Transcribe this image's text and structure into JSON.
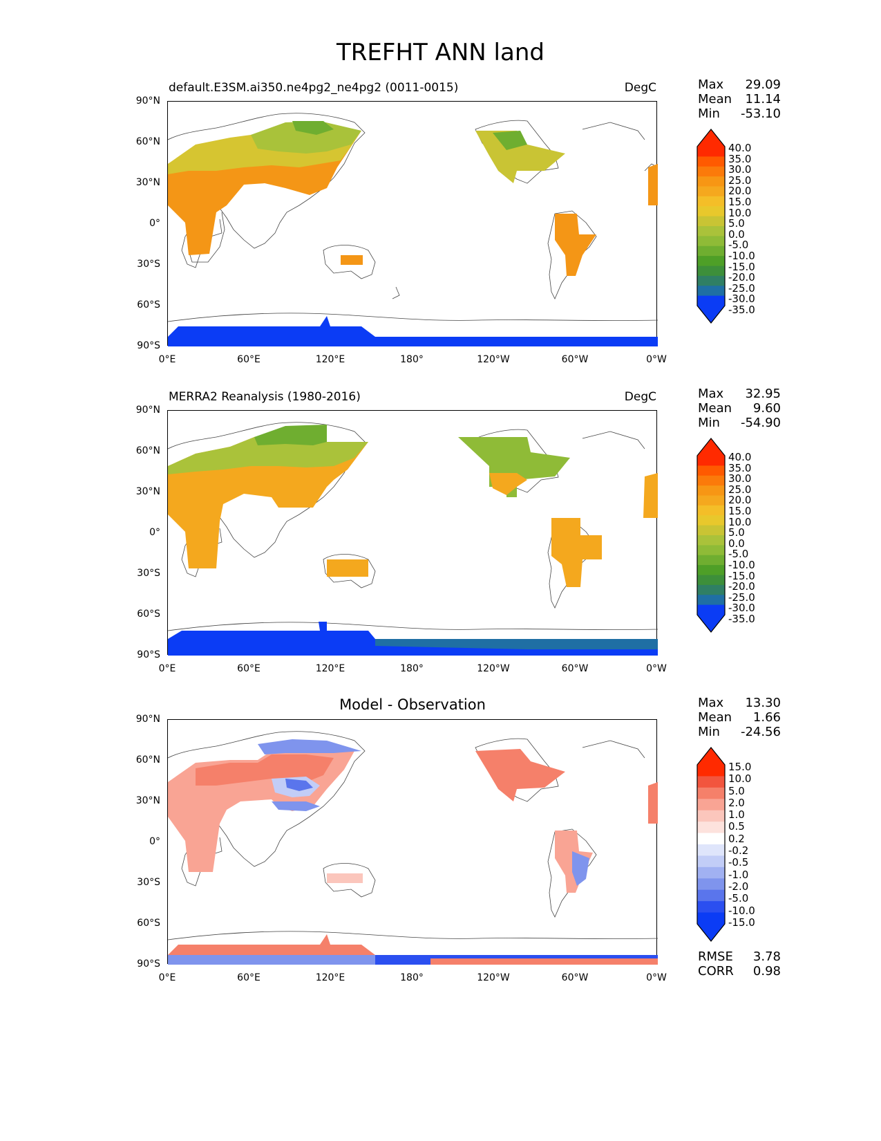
{
  "figure_title": "TREFHT ANN land",
  "x_ticks": [
    "0°E",
    "60°E",
    "120°E",
    "180°",
    "120°W",
    "60°W",
    "0°W"
  ],
  "y_ticks": [
    "90°N",
    "60°N",
    "30°N",
    "0°",
    "30°S",
    "60°S",
    "90°S"
  ],
  "panels": [
    {
      "title": "default.E3SM.ai350.ne4pg2_ne4pg2 (0011-0015)",
      "units": "DegC",
      "stats": [
        {
          "label": "Max",
          "value": "29.09"
        },
        {
          "label": "Mean",
          "value": "11.14"
        },
        {
          "label": "Min",
          "value": "-53.10"
        }
      ],
      "colorbar_levels": [
        "40.0",
        "35.0",
        "30.0",
        "25.0",
        "20.0",
        "15.0",
        "10.0",
        "5.0",
        "0.0",
        "-5.0",
        "-10.0",
        "-15.0",
        "-20.0",
        "-25.0",
        "-30.0",
        "-35.0"
      ]
    },
    {
      "title": "MERRA2 Reanalysis (1980-2016)",
      "units": "DegC",
      "stats": [
        {
          "label": "Max",
          "value": "32.95"
        },
        {
          "label": "Mean",
          "value": "9.60"
        },
        {
          "label": "Min",
          "value": "-54.90"
        }
      ],
      "colorbar_levels": [
        "40.0",
        "35.0",
        "30.0",
        "25.0",
        "20.0",
        "15.0",
        "10.0",
        "5.0",
        "0.0",
        "-5.0",
        "-10.0",
        "-15.0",
        "-20.0",
        "-25.0",
        "-30.0",
        "-35.0"
      ]
    },
    {
      "title": "Model - Observation",
      "units": "",
      "stats": [
        {
          "label": "Max",
          "value": "13.30"
        },
        {
          "label": "Mean",
          "value": "1.66"
        },
        {
          "label": "Min",
          "value": "-24.56"
        }
      ],
      "colorbar_levels": [
        "15.0",
        "10.0",
        "5.0",
        "2.0",
        "1.0",
        "0.5",
        "0.2",
        "-0.2",
        "-0.5",
        "-1.0",
        "-2.0",
        "-5.0",
        "-10.0",
        "-15.0"
      ],
      "extra_stats": [
        {
          "label": "RMSE",
          "value": "3.78"
        },
        {
          "label": "CORR",
          "value": "0.98"
        }
      ]
    }
  ],
  "colors": {
    "temp_scale": [
      "#ff2a00",
      "#ff5a00",
      "#fb7a0a",
      "#f79614",
      "#f5a81e",
      "#f4be28",
      "#e8c82c",
      "#c9c434",
      "#aac23a",
      "#8fbb37",
      "#6fae30",
      "#4e9f27",
      "#3d8f3a",
      "#2f7f64",
      "#1f6fa4",
      "#0b3cf5"
    ],
    "diff_scale": [
      "#ff2a00",
      "#f2553e",
      "#f5806a",
      "#f9a494",
      "#fbc6bc",
      "#fde2dd",
      "#ffffff",
      "#dfe5fb",
      "#c2cdf7",
      "#a1b1f2",
      "#7f94ed",
      "#5a75ec",
      "#2b4ff0",
      "#0b3cf5"
    ]
  }
}
